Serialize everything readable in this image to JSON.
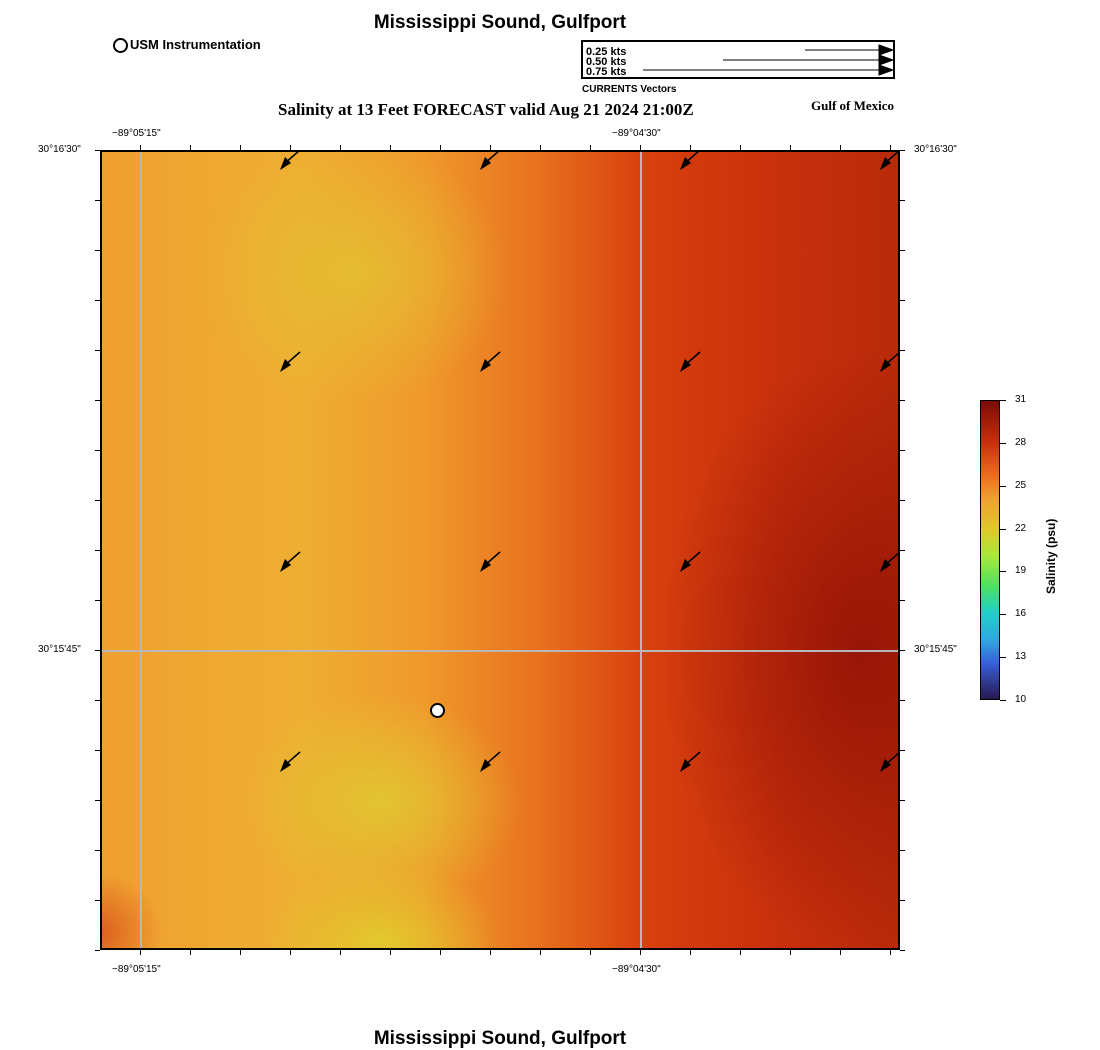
{
  "header": {
    "title": "Mississippi Sound, Gulfport",
    "subtitle": "Salinity at 13 Feet FORECAST valid Aug 21 2024 21:00Z",
    "region": "Gulf of Mexico",
    "station_legend": "USM Instrumentation"
  },
  "vector_legend": {
    "title": "CURRENTS Vectors",
    "items": [
      {
        "label": "0.25 kts",
        "speed": 0.25
      },
      {
        "label": "0.50 kts",
        "speed": 0.5
      },
      {
        "label": "0.75 kts",
        "speed": 0.75
      }
    ]
  },
  "axes": {
    "lon_labels": [
      "−89°05'15\"",
      "−89°04'30\""
    ],
    "lat_labels": [
      "30°16'30\"",
      "30°15'45\""
    ]
  },
  "colorbar": {
    "label": "Salinity (psu)",
    "ticks": [
      "31",
      "28",
      "25",
      "22",
      "19",
      "16",
      "13",
      "10"
    ],
    "min": 10,
    "max": 31
  },
  "footer": {
    "title": "Mississippi Sound, Gulfport"
  }
}
